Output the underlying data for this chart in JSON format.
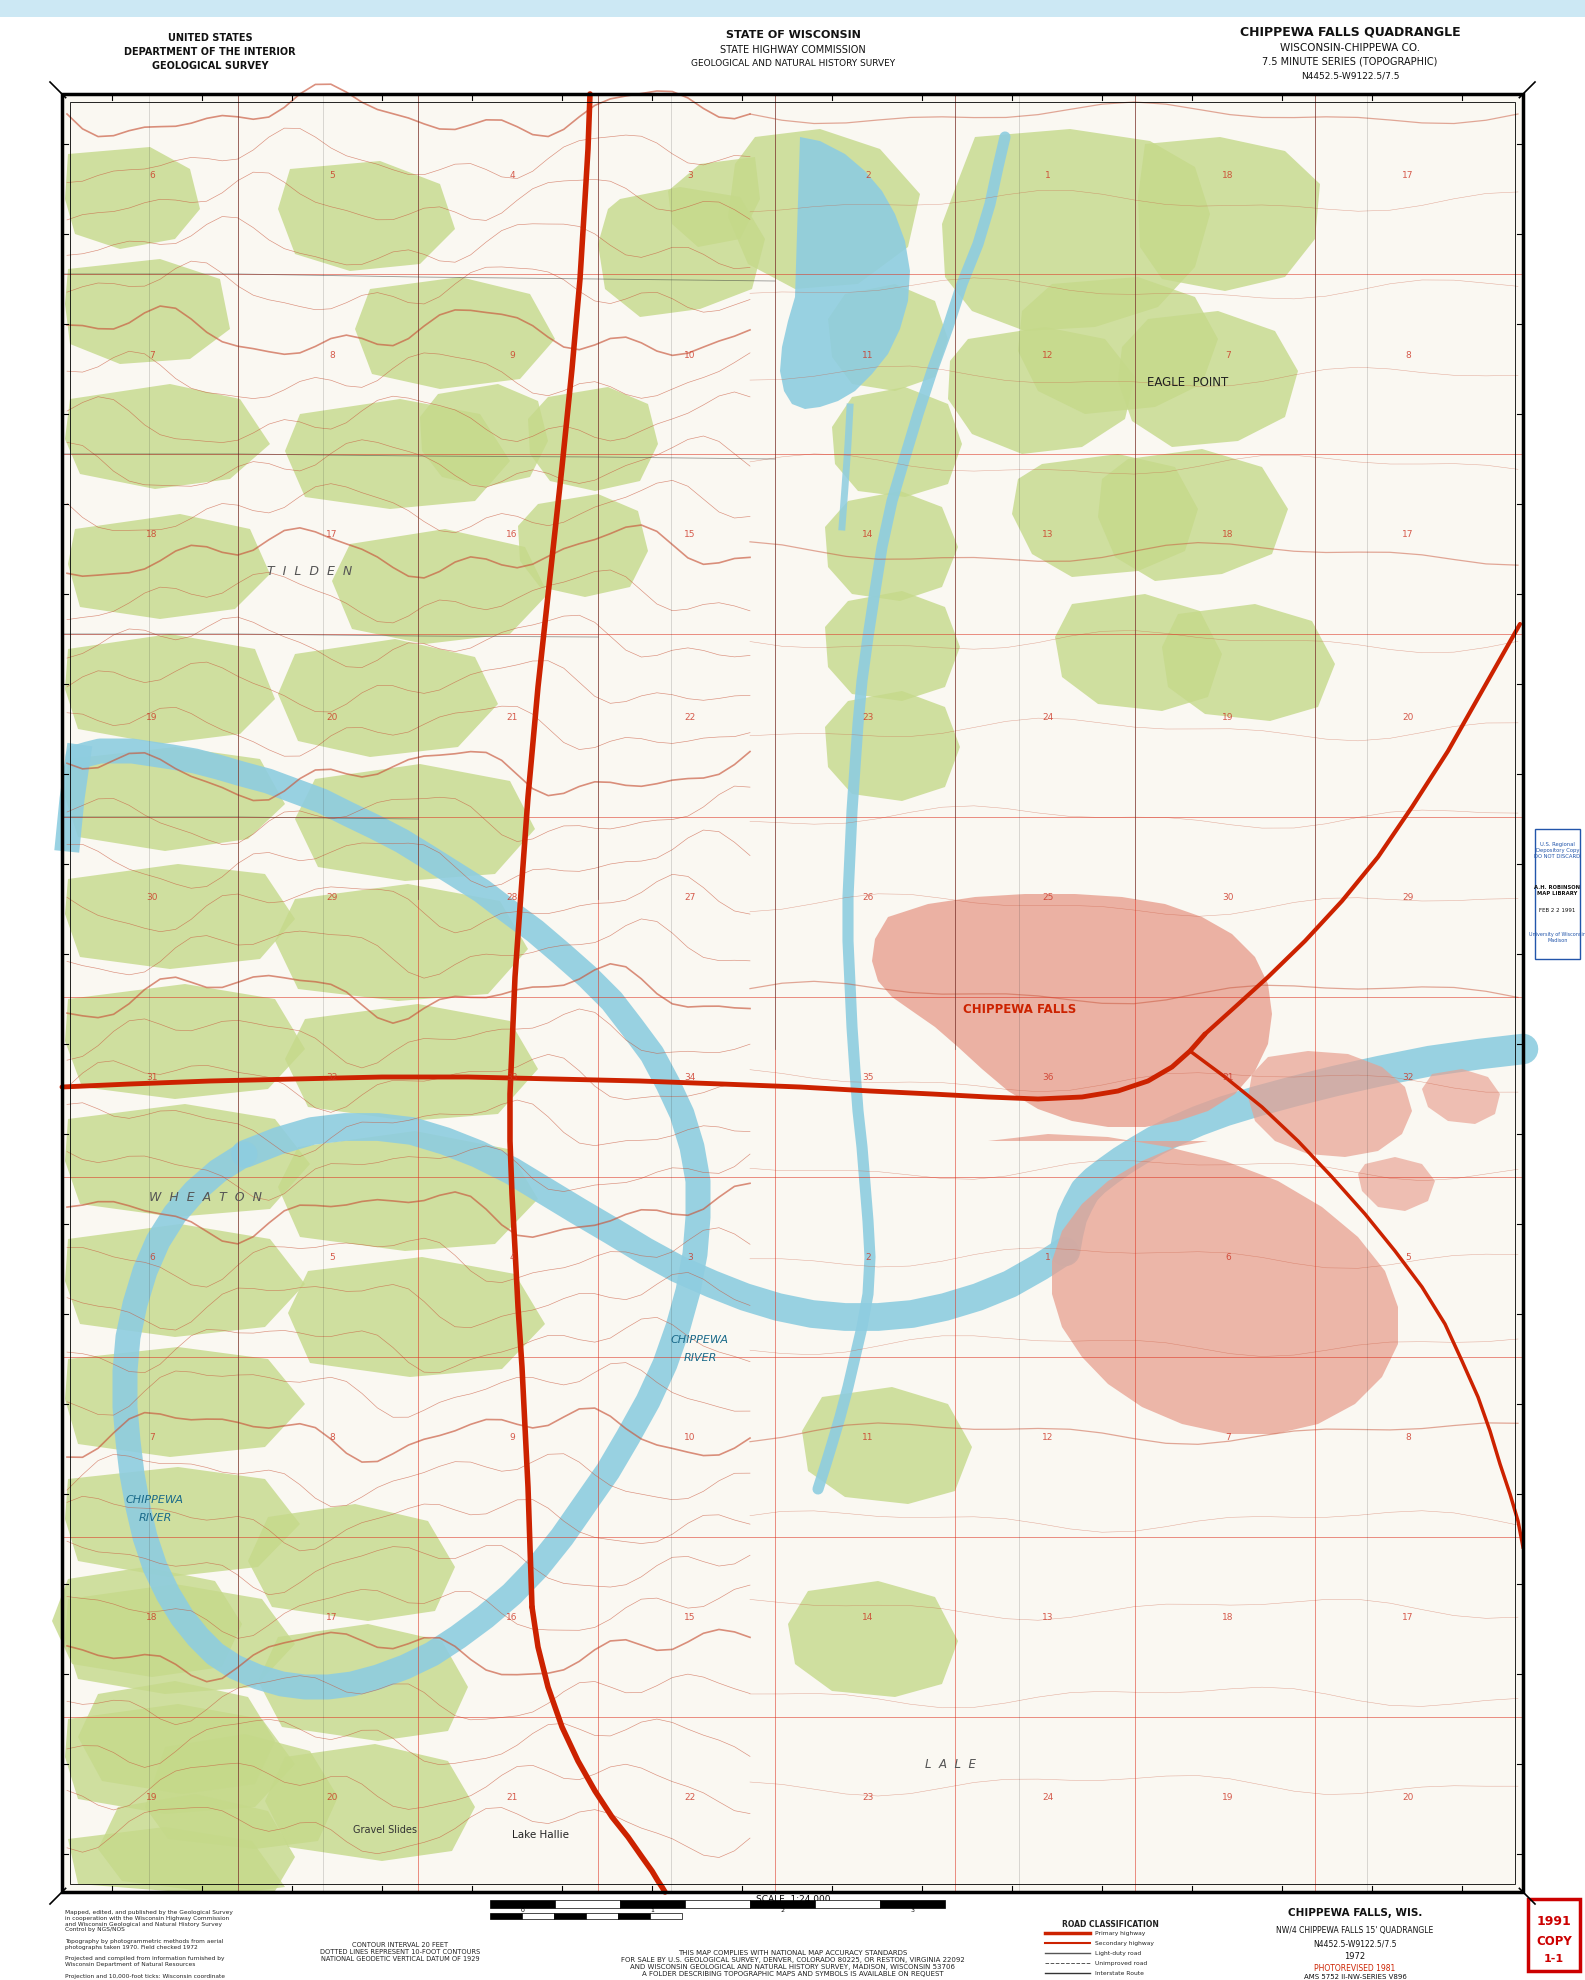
{
  "title_left_line1": "UNITED STATES",
  "title_left_line2": "DEPARTMENT OF THE INTERIOR",
  "title_left_line3": "GEOLOGICAL SURVEY",
  "title_center_line1": "STATE OF WISCONSIN",
  "title_center_line2": "STATE HIGHWAY COMMISSION",
  "title_center_line3": "GEOLOGICAL AND NATURAL HISTORY SURVEY",
  "title_right_line1": "CHIPPEWA FALLS QUADRANGLE",
  "title_right_line2": "WISCONSIN-CHIPPEWA CO.",
  "title_right_line3": "7.5 MINUTE SERIES (TOPOGRAPHIC)",
  "title_right_line4": "N4452.5-W9122.5/7.5",
  "map_bg": "#faf8f2",
  "topo_color": "#c8553a",
  "water_color": "#72bdd4",
  "water_fill": "#8ecde0",
  "vegetation_color": "#c5d98a",
  "urban_color": "#e8a090",
  "grid_color_red": "#dd3322",
  "grid_color_black": "#333333",
  "white_bg": "#ffffff",
  "light_blue_top": "#cce8f4",
  "road_primary": "#cc2200",
  "road_secondary": "#cc6600",
  "road_light": "#555555",
  "stamp_red": "#cc0000",
  "lib_blue": "#2255aa"
}
